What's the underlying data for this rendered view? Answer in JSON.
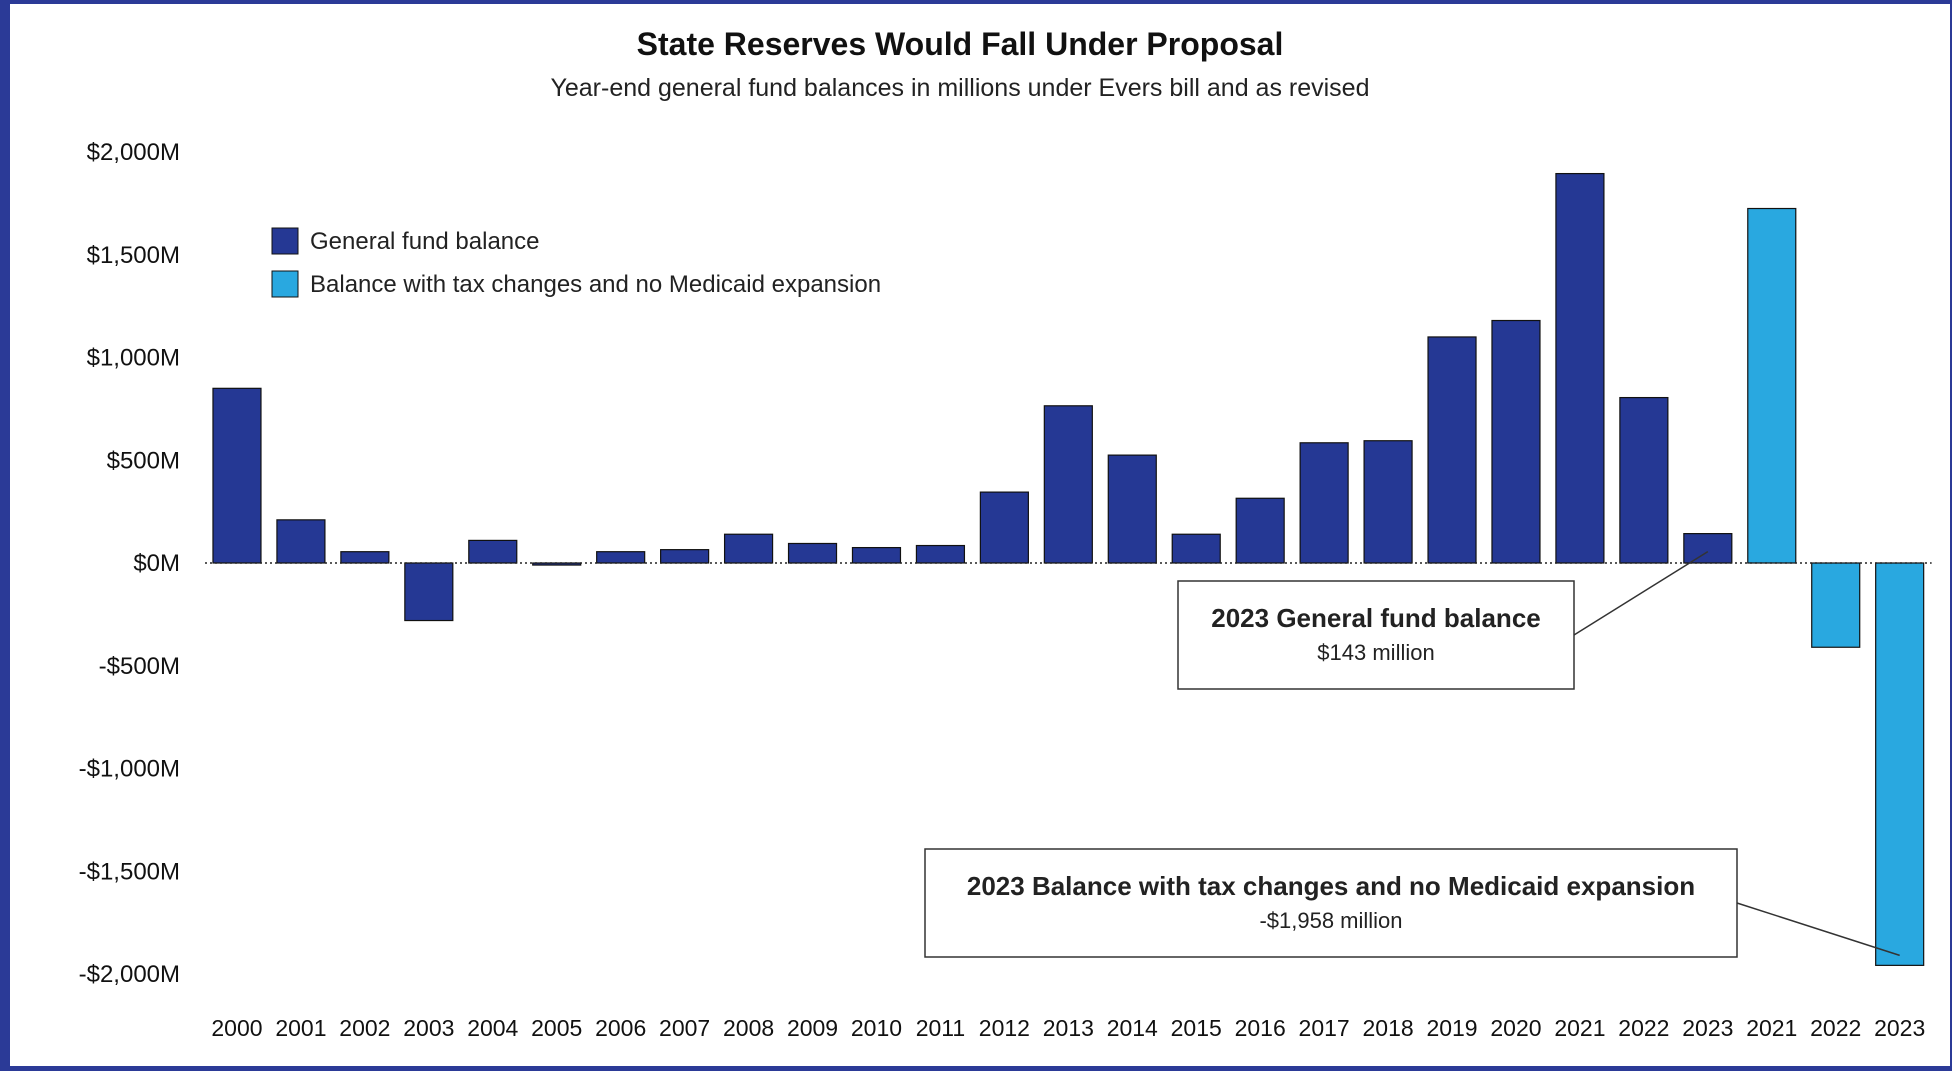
{
  "chart_data": {
    "type": "bar",
    "title": "State Reserves Would Fall Under Proposal",
    "subtitle": "Year-end general fund balances in millions under Evers bill and as revised",
    "xlabel": "",
    "ylabel": "",
    "ylim": [
      -2000,
      2000
    ],
    "yticks": [
      {
        "value": 2000,
        "label": "$2,000M"
      },
      {
        "value": 1500,
        "label": "$1,500M"
      },
      {
        "value": 1000,
        "label": "$1,000M"
      },
      {
        "value": 500,
        "label": "$500M"
      },
      {
        "value": 0,
        "label": "$0M"
      },
      {
        "value": -500,
        "label": "-$500M"
      },
      {
        "value": -1000,
        "label": "-$1,000M"
      },
      {
        "value": -1500,
        "label": "-$1,500M"
      },
      {
        "value": -2000,
        "label": "-$2,000M"
      }
    ],
    "grid": false,
    "legend_position": "top-left",
    "categories": [
      "2000",
      "2001",
      "2002",
      "2003",
      "2004",
      "2005",
      "2006",
      "2007",
      "2008",
      "2009",
      "2010",
      "2011",
      "2012",
      "2013",
      "2014",
      "2015",
      "2016",
      "2017",
      "2018",
      "2019",
      "2020",
      "2021",
      "2022",
      "2023",
      "2021",
      "2022",
      "2023"
    ],
    "series": [
      {
        "name": "General fund balance",
        "color": "#253894",
        "values": [
          850,
          210,
          55,
          -280,
          110,
          -10,
          55,
          65,
          140,
          95,
          75,
          85,
          345,
          765,
          525,
          140,
          315,
          585,
          595,
          1100,
          1180,
          1895,
          805,
          143,
          null,
          null,
          null
        ]
      },
      {
        "name": "Balance with tax changes and no Medicaid expansion",
        "color": "#29a8e0",
        "values": [
          null,
          null,
          null,
          null,
          null,
          null,
          null,
          null,
          null,
          null,
          null,
          null,
          null,
          null,
          null,
          null,
          null,
          null,
          null,
          null,
          null,
          null,
          null,
          null,
          1725,
          -410,
          -1958
        ]
      }
    ],
    "annotations": [
      {
        "title": "2023 General fund balance",
        "value": "$143 million",
        "target_index": 23
      },
      {
        "title": "2023 Balance with tax changes and no Medicaid expansion",
        "value": "-$1,958 million",
        "target_index": 26
      }
    ]
  }
}
